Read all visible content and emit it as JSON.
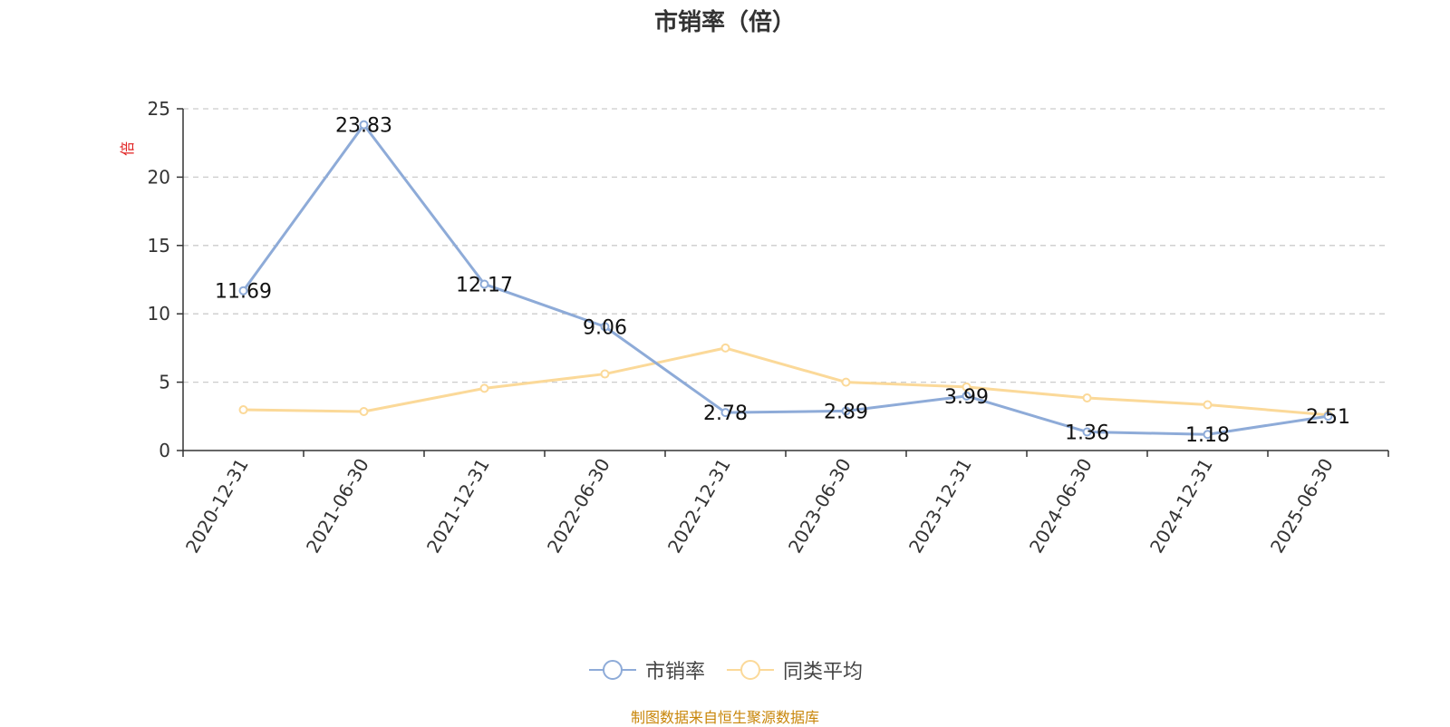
{
  "chart_data": {
    "type": "line",
    "title": "市销率（倍）",
    "ylabel": "倍",
    "xlabel": "",
    "ylim": [
      0,
      25
    ],
    "yticks": [
      0,
      5,
      10,
      15,
      20,
      25
    ],
    "grid": true,
    "legend_position": "bottom",
    "categories": [
      "2020-12-31",
      "2021-06-30",
      "2021-12-31",
      "2022-06-30",
      "2022-12-31",
      "2023-06-30",
      "2023-12-31",
      "2024-06-30",
      "2024-12-31",
      "2025-06-30"
    ],
    "series": [
      {
        "name": "市销率",
        "color": "#8eabd8",
        "values": [
          11.69,
          23.83,
          12.17,
          9.06,
          2.78,
          2.89,
          3.99,
          1.36,
          1.18,
          2.51
        ],
        "data_labels": [
          "11.69",
          "23.83",
          "12.17",
          "9.06",
          "2.78",
          "2.89",
          "3.99",
          "1.36",
          "1.18",
          "2.51"
        ]
      },
      {
        "name": "同类平均",
        "color": "#fbd999",
        "values": [
          2.98,
          2.85,
          4.55,
          5.6,
          7.5,
          5.0,
          4.65,
          3.85,
          3.35,
          2.6
        ]
      }
    ]
  },
  "source_note": "制图数据来自恒生聚源数据库",
  "colors": {
    "axis": "#333333",
    "grid": "#cccccc",
    "ylabel": "#e02020",
    "source": "#c8860a"
  }
}
